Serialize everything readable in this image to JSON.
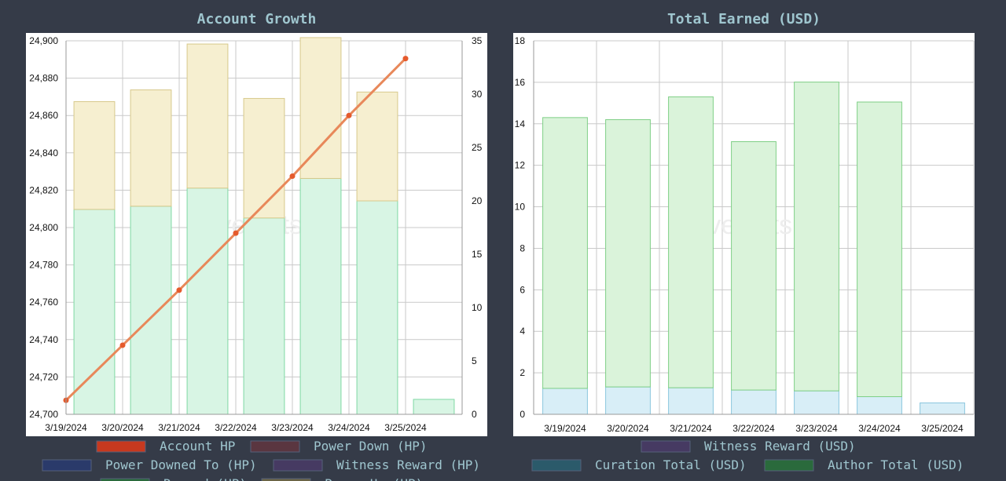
{
  "charts": {
    "account_growth": {
      "title": "Account Growth"
    },
    "total_earned": {
      "title": "Total Earned (USD)"
    }
  },
  "watermark": "hivestats.io",
  "chart_data": [
    {
      "type": "bar",
      "title": "Account Growth",
      "categories": [
        "3/19/2024",
        "3/20/2024",
        "3/21/2024",
        "3/22/2024",
        "3/23/2024",
        "3/24/2024",
        "3/25/2024"
      ],
      "y_left": {
        "ylim": [
          24700,
          24900
        ],
        "ticks": [
          24700,
          24720,
          24740,
          24760,
          24780,
          24800,
          24820,
          24840,
          24860,
          24880,
          24900
        ]
      },
      "y_right": {
        "ylim": [
          0,
          35
        ],
        "ticks": [
          0,
          5,
          10,
          15,
          20,
          25,
          30,
          35
        ]
      },
      "series": [
        {
          "name": "Account HP",
          "type": "line",
          "axis": "left",
          "color": "#e8885a",
          "marker_color": "#e55a2c",
          "values": [
            24707.5,
            24737,
            24766.5,
            24797,
            24827.5,
            24860,
            24890.5
          ]
        },
        {
          "name": "Reward (HP)",
          "type": "bar",
          "axis": "right",
          "color": "#d8f5e4",
          "stroke": "#7fd9a3",
          "values": [
            19.2,
            19.5,
            21.2,
            18.4,
            22.1,
            20.0,
            1.4
          ]
        },
        {
          "name": "Power Up (HP)",
          "type": "bar",
          "axis": "right",
          "color": "#f6efd0",
          "stroke": "#d8c98c",
          "values": [
            10.1,
            10.9,
            13.5,
            11.2,
            13.2,
            10.2,
            0
          ]
        }
      ],
      "grid": true,
      "legend": {
        "position": "bottom",
        "items": [
          {
            "label": "Account HP",
            "color": "#c7391f"
          },
          {
            "label": "Power Down (HP)",
            "color": "#5a3640"
          },
          {
            "label": "Power Downed To (HP)",
            "color": "#2a3a6a"
          },
          {
            "label": "Witness Reward (HP)",
            "color": "#463a62"
          },
          {
            "label": "Reward (HP)",
            "color": "#2a6a3c"
          },
          {
            "label": "Power Up (HP)",
            "color": "#6a6445"
          }
        ]
      }
    },
    {
      "type": "bar",
      "title": "Total Earned (USD)",
      "categories": [
        "3/19/2024",
        "3/20/2024",
        "3/21/2024",
        "3/22/2024",
        "3/23/2024",
        "3/24/2024",
        "3/25/2024"
      ],
      "ylim": [
        0,
        18
      ],
      "y_ticks": [
        0,
        2,
        4,
        6,
        8,
        10,
        12,
        14,
        16,
        18
      ],
      "series": [
        {
          "name": "Curation Total (USD)",
          "color": "#d8eef7",
          "stroke": "#8ac6de",
          "values": [
            1.25,
            1.32,
            1.28,
            1.17,
            1.13,
            0.85,
            0.55
          ]
        },
        {
          "name": "Author Total (USD)",
          "color": "#daf3da",
          "stroke": "#7fcf86",
          "values": [
            13.05,
            12.88,
            14.02,
            11.97,
            14.88,
            14.2,
            0
          ]
        }
      ],
      "grid": true,
      "legend": {
        "position": "bottom",
        "items": [
          {
            "label": "Witness Reward (USD)",
            "color": "#463a62"
          },
          {
            "label": "Curation Total (USD)",
            "color": "#2b5a6a"
          },
          {
            "label": "Author Total (USD)",
            "color": "#2a6a3c"
          }
        ]
      }
    }
  ]
}
